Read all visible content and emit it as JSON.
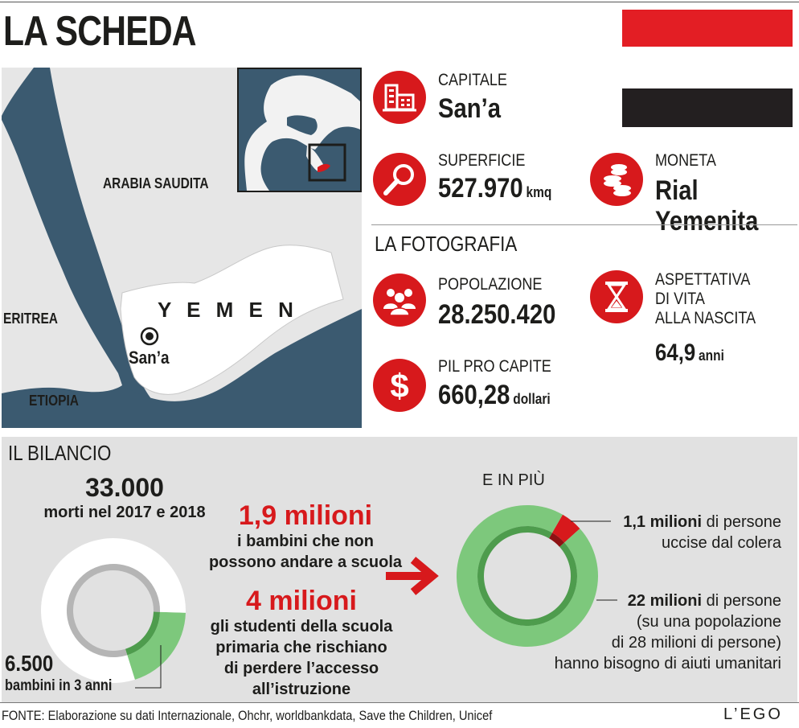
{
  "header": {
    "title": "LA SCHEDA"
  },
  "flag": {
    "colors": [
      "#e31e24",
      "#ffffff",
      "#231f20"
    ]
  },
  "map": {
    "labels": {
      "saudi": "ARABIA SAUDITA",
      "eritrea": "ERITREA",
      "ethiopia": "ETIOPIA",
      "yemen": "Y E M E N",
      "capital": "San’a"
    },
    "colors": {
      "sea": "#3b5a70",
      "land": "#e6e6e6",
      "yemen": "#ffffff",
      "highlight": "#d7191c"
    }
  },
  "facts": {
    "capital": {
      "label": "CAPITALE",
      "value": "San’a",
      "icon": "building-icon"
    },
    "area": {
      "label": "SUPERFICIE",
      "value": "527.970",
      "unit": "kmq",
      "icon": "magnifier-icon"
    },
    "currency": {
      "label": "MONETA",
      "value": "Rial Yemenita",
      "icon": "coins-icon"
    }
  },
  "photo": {
    "title": "LA FOTOGRAFIA",
    "population": {
      "label": "POPOLAZIONE",
      "value": "28.250.420",
      "icon": "people-icon"
    },
    "gdp": {
      "label": "PIL PRO CAPITE",
      "value": "660,28",
      "unit": "dollari",
      "icon": "dollar-icon"
    },
    "life": {
      "label_lines": [
        "ASPETTATIVA",
        "DI VITA",
        "ALLA NASCITA"
      ],
      "value": "64,9",
      "unit": "anni",
      "icon": "hourglass-icon"
    }
  },
  "bilancio": {
    "title": "IL BILANCIO",
    "deaths": {
      "value": "33.000",
      "label": "morti nel 2017 e 2018"
    },
    "children": {
      "value": "6.500",
      "label": "bambini in 3 anni"
    },
    "school": {
      "value": "1,9 milioni",
      "lines": [
        "i bambini che non",
        "possono andare a scuola"
      ]
    },
    "students": {
      "value": "4 milioni",
      "lines": [
        "gli studenti della scuola",
        "primaria che rischiano",
        "di perdere l’accesso",
        "all’istruzione"
      ]
    },
    "more_title": "E IN PIÙ",
    "cholera": {
      "value": "1,1",
      "bold": "milioni",
      "rest": " di persone",
      "line2": "uccise dal colera"
    },
    "aid": {
      "value": "22",
      "bold": "milioni",
      "rest": " di persone",
      "lines": [
        "(su una popolazione",
        "di 28 milioni di persone)",
        "hanno bisogno di aiuti umanitari"
      ]
    }
  },
  "chart_data": [
    {
      "type": "pie",
      "title": "33.000 morti nel 2017 e 2018",
      "total": 33000,
      "slices": [
        {
          "label": "bambini in 3 anni",
          "value": 6500,
          "color": "#7dc87c"
        },
        {
          "label": "",
          "value": 26500,
          "color": "#ffffff"
        }
      ]
    },
    {
      "type": "pie",
      "title": "E IN PIÙ",
      "unit": "milioni",
      "total": 22,
      "slices": [
        {
          "label": "uccise dal colera",
          "value": 1.1,
          "color": "#d7191c"
        },
        {
          "label": "",
          "value": 20.9,
          "color": "#7dc87c"
        }
      ]
    }
  ],
  "footer": {
    "source": "FONTE: Elaborazione su dati Internazionale, Ohchr, worldbankdata, Save the Children, Unicef",
    "brand": "L’EGO"
  }
}
